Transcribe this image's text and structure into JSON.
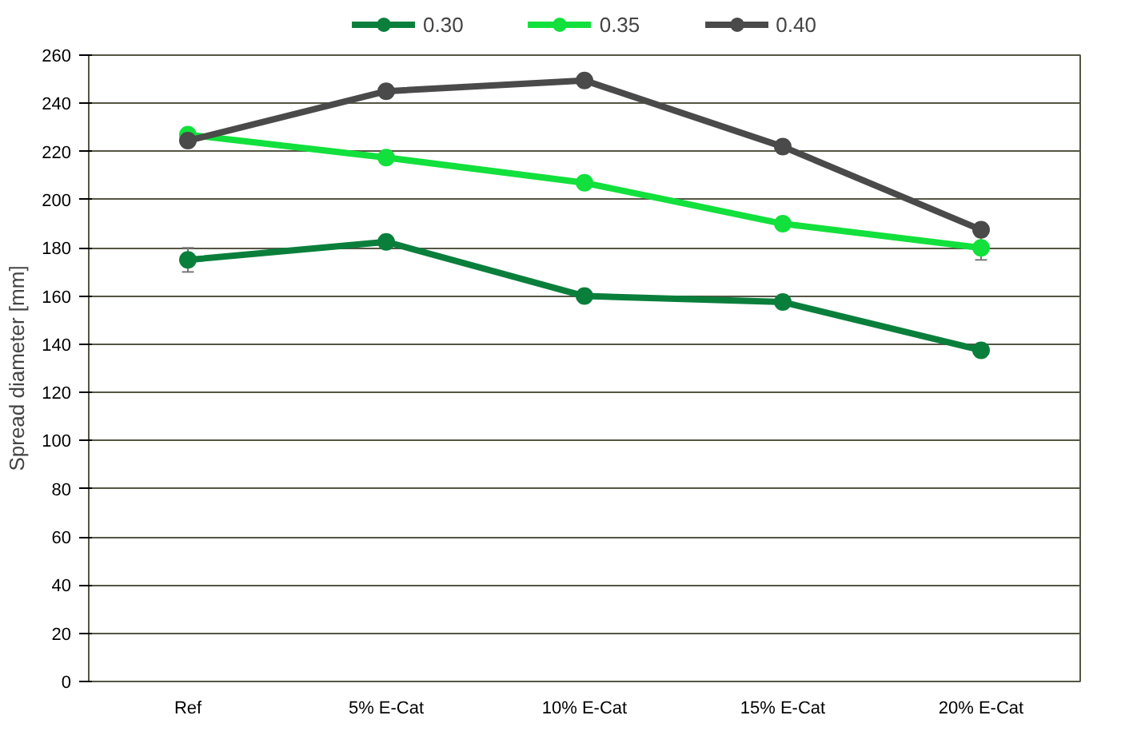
{
  "chart_data": {
    "type": "line",
    "ylabel": "Spread diameter [mm]",
    "categories": [
      "Ref",
      "5% E-Cat",
      "10% E-Cat",
      "15% E-Cat",
      "20% E-Cat"
    ],
    "series": [
      {
        "name": "0.30",
        "color": "#0a7f3c",
        "values": [
          175,
          182.5,
          160,
          157.5,
          137.5
        ],
        "errors": [
          5,
          null,
          null,
          null,
          null
        ]
      },
      {
        "name": "0.35",
        "color": "#12e03c",
        "values": [
          227,
          217.5,
          207,
          190,
          180
        ],
        "errors": [
          null,
          null,
          null,
          null,
          5
        ]
      },
      {
        "name": "0.40",
        "color": "#4a4a4a",
        "values": [
          224.5,
          245,
          249.5,
          222,
          187.5
        ]
      }
    ],
    "ylim": [
      0,
      260
    ],
    "yticks": [
      0,
      20,
      40,
      60,
      80,
      100,
      120,
      140,
      160,
      180,
      200,
      220,
      240,
      260
    ],
    "grid": "y",
    "legend": "top",
    "marker": "circle",
    "line_style": "solid"
  }
}
